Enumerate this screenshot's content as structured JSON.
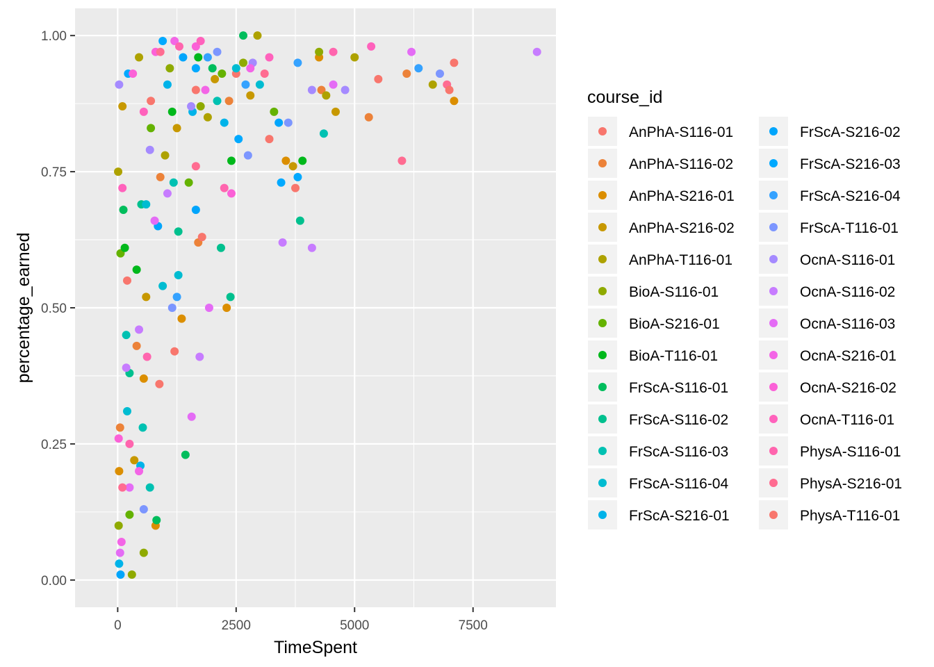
{
  "chart_data": {
    "type": "scatter",
    "xlabel": "TimeSpent",
    "ylabel": "percentage_earned",
    "xlim": [
      -900,
      9250
    ],
    "ylim": [
      -0.05,
      1.05
    ],
    "x_ticks": [
      0,
      2500,
      5000,
      7500
    ],
    "x_tick_labels": [
      "0",
      "2500",
      "5000",
      "7500"
    ],
    "y_ticks": [
      0,
      0.25,
      0.5,
      0.75,
      1.0
    ],
    "y_tick_labels": [
      "0.00",
      "0.25",
      "0.50",
      "0.75",
      "1.00"
    ],
    "grid": true,
    "background": "#EBEBEB",
    "legend": {
      "title": "course_id",
      "placement": "right",
      "columns": 2
    },
    "series": [
      {
        "name": "AnPhA-S116-01",
        "color": "#F8766D",
        "points": [
          [
            200,
            0.55
          ],
          [
            700,
            0.88
          ],
          [
            1200,
            0.42
          ],
          [
            1650,
            0.9
          ],
          [
            2500,
            0.93
          ],
          [
            3200,
            0.81
          ]
        ]
      },
      {
        "name": "AnPhA-S116-02",
        "color": "#EC8239",
        "points": [
          [
            50,
            0.28
          ],
          [
            400,
            0.43
          ],
          [
            900,
            0.74
          ],
          [
            1700,
            0.62
          ],
          [
            2350,
            0.88
          ],
          [
            4300,
            0.9
          ],
          [
            5300,
            0.85
          ],
          [
            6100,
            0.93
          ]
        ]
      },
      {
        "name": "AnPhA-S216-01",
        "color": "#DB8E00",
        "points": [
          [
            30,
            0.2
          ],
          [
            550,
            0.37
          ],
          [
            800,
            0.1
          ],
          [
            1350,
            0.48
          ],
          [
            2300,
            0.5
          ],
          [
            3550,
            0.77
          ],
          [
            4250,
            0.96
          ],
          [
            7100,
            0.88
          ]
        ]
      },
      {
        "name": "AnPhA-S216-02",
        "color": "#C79800",
        "points": [
          [
            100,
            0.87
          ],
          [
            350,
            0.22
          ],
          [
            600,
            0.52
          ],
          [
            1250,
            0.83
          ],
          [
            2050,
            0.92
          ],
          [
            2800,
            0.89
          ],
          [
            3700,
            0.76
          ],
          [
            4600,
            0.86
          ]
        ]
      },
      {
        "name": "AnPhA-T116-01",
        "color": "#AEA200",
        "points": [
          [
            10,
            0.75
          ],
          [
            450,
            0.96
          ],
          [
            1000,
            0.78
          ],
          [
            1900,
            0.85
          ],
          [
            2950,
            1.0
          ],
          [
            4400,
            0.89
          ],
          [
            5000,
            0.96
          ],
          [
            6650,
            0.91
          ]
        ]
      },
      {
        "name": "BioA-S116-01",
        "color": "#8FAA00",
        "points": [
          [
            20,
            0.1
          ],
          [
            300,
            0.01
          ],
          [
            550,
            0.05
          ],
          [
            1100,
            0.94
          ],
          [
            1750,
            0.87
          ],
          [
            2650,
            0.95
          ],
          [
            4250,
            0.97
          ]
        ]
      },
      {
        "name": "BioA-S216-01",
        "color": "#64B200",
        "points": [
          [
            60,
            0.6
          ],
          [
            250,
            0.12
          ],
          [
            700,
            0.83
          ],
          [
            1500,
            0.73
          ],
          [
            2200,
            0.93
          ],
          [
            3300,
            0.86
          ]
        ]
      },
      {
        "name": "BioA-T116-01",
        "color": "#00B81B",
        "points": [
          [
            150,
            0.61
          ],
          [
            400,
            0.57
          ],
          [
            1150,
            0.86
          ],
          [
            1700,
            0.96
          ],
          [
            2400,
            0.77
          ],
          [
            3900,
            0.77
          ]
        ]
      },
      {
        "name": "FrScA-S116-01",
        "color": "#00BD5C",
        "points": [
          [
            120,
            0.68
          ],
          [
            820,
            0.11
          ],
          [
            1430,
            0.23
          ],
          [
            2000,
            0.94
          ],
          [
            2650,
            1.0
          ]
        ]
      },
      {
        "name": "FrScA-S116-02",
        "color": "#00C08E",
        "points": [
          [
            250,
            0.38
          ],
          [
            500,
            0.69
          ],
          [
            1280,
            0.64
          ],
          [
            2180,
            0.61
          ],
          [
            2380,
            0.52
          ],
          [
            3850,
            0.66
          ]
        ]
      },
      {
        "name": "FrScA-S116-03",
        "color": "#00C1B2",
        "points": [
          [
            180,
            0.45
          ],
          [
            530,
            0.28
          ],
          [
            680,
            0.17
          ],
          [
            1180,
            0.73
          ],
          [
            2100,
            0.88
          ],
          [
            4350,
            0.82
          ]
        ]
      },
      {
        "name": "FrScA-S116-04",
        "color": "#00BCD1",
        "points": [
          [
            200,
            0.31
          ],
          [
            600,
            0.69
          ],
          [
            950,
            0.54
          ],
          [
            1280,
            0.56
          ],
          [
            2500,
            0.94
          ],
          [
            3000,
            0.91
          ]
        ]
      },
      {
        "name": "FrScA-S216-01",
        "color": "#00B3E9",
        "points": [
          [
            30,
            0.03
          ],
          [
            480,
            0.21
          ],
          [
            1050,
            0.91
          ],
          [
            1580,
            0.86
          ],
          [
            2250,
            0.84
          ]
        ]
      },
      {
        "name": "FrScA-S216-02",
        "color": "#00A5FC",
        "points": [
          [
            60,
            0.01
          ],
          [
            850,
            0.65
          ],
          [
            1380,
            0.96
          ],
          [
            1650,
            0.68
          ],
          [
            3400,
            0.84
          ]
        ]
      },
      {
        "name": "FrScA-S216-03",
        "color": "#00A9FF",
        "points": [
          [
            220,
            0.93
          ],
          [
            950,
            0.99
          ],
          [
            1650,
            0.94
          ],
          [
            2550,
            0.81
          ],
          [
            3450,
            0.73
          ],
          [
            3800,
            0.74
          ]
        ]
      },
      {
        "name": "FrScA-S216-04",
        "color": "#35A2FF",
        "points": [
          [
            1250,
            0.52
          ],
          [
            1900,
            0.96
          ],
          [
            2700,
            0.91
          ],
          [
            3800,
            0.95
          ],
          [
            6350,
            0.94
          ]
        ]
      },
      {
        "name": "FrScA-T116-01",
        "color": "#7C96FF",
        "points": [
          [
            550,
            0.13
          ],
          [
            1150,
            0.5
          ],
          [
            2100,
            0.97
          ],
          [
            2750,
            0.78
          ],
          [
            3600,
            0.84
          ],
          [
            6800,
            0.93
          ]
        ]
      },
      {
        "name": "OcnA-S116-01",
        "color": "#A58AFF",
        "points": [
          [
            30,
            0.91
          ],
          [
            680,
            0.79
          ],
          [
            1550,
            0.87
          ],
          [
            2850,
            0.95
          ],
          [
            4100,
            0.9
          ],
          [
            4800,
            0.9
          ]
        ]
      },
      {
        "name": "OcnA-S116-02",
        "color": "#C77CFF",
        "points": [
          [
            180,
            0.39
          ],
          [
            450,
            0.46
          ],
          [
            1050,
            0.71
          ],
          [
            1730,
            0.41
          ],
          [
            3480,
            0.62
          ],
          [
            4100,
            0.61
          ],
          [
            8850,
            0.97
          ]
        ]
      },
      {
        "name": "OcnA-S116-03",
        "color": "#E46CF5",
        "points": [
          [
            50,
            0.05
          ],
          [
            250,
            0.17
          ],
          [
            780,
            0.66
          ],
          [
            1560,
            0.3
          ],
          [
            1930,
            0.5
          ],
          [
            4550,
            0.91
          ],
          [
            6200,
            0.97
          ]
        ]
      },
      {
        "name": "OcnA-S216-01",
        "color": "#F365E6",
        "points": [
          [
            80,
            0.07
          ],
          [
            450,
            0.2
          ],
          [
            1200,
            0.99
          ],
          [
            1850,
            0.9
          ],
          [
            2800,
            0.94
          ]
        ]
      },
      {
        "name": "OcnA-S216-02",
        "color": "#FB61D7",
        "points": [
          [
            20,
            0.26
          ],
          [
            320,
            0.93
          ],
          [
            800,
            0.97
          ],
          [
            1650,
            0.98
          ],
          [
            2400,
            0.71
          ]
        ]
      },
      {
        "name": "OcnA-T116-01",
        "color": "#FF62BC",
        "points": [
          [
            100,
            0.72
          ],
          [
            550,
            0.86
          ],
          [
            1750,
            0.99
          ],
          [
            3200,
            0.96
          ],
          [
            5350,
            0.98
          ]
        ]
      },
      {
        "name": "PhysA-S116-01",
        "color": "#FF65AE",
        "points": [
          [
            250,
            0.25
          ],
          [
            620,
            0.41
          ],
          [
            1300,
            0.98
          ],
          [
            2250,
            0.72
          ],
          [
            4550,
            0.97
          ]
        ]
      },
      {
        "name": "PhysA-S216-01",
        "color": "#FF6C91",
        "points": [
          [
            100,
            0.17
          ],
          [
            900,
            0.97
          ],
          [
            1650,
            0.76
          ],
          [
            3100,
            0.93
          ],
          [
            6000,
            0.77
          ],
          [
            6950,
            0.91
          ]
        ]
      },
      {
        "name": "PhysA-T116-01",
        "color": "#F8766D",
        "points": [
          [
            880,
            0.36
          ],
          [
            1780,
            0.63
          ],
          [
            3750,
            0.72
          ],
          [
            5500,
            0.92
          ],
          [
            7100,
            0.95
          ],
          [
            7000,
            0.9
          ]
        ]
      }
    ]
  }
}
